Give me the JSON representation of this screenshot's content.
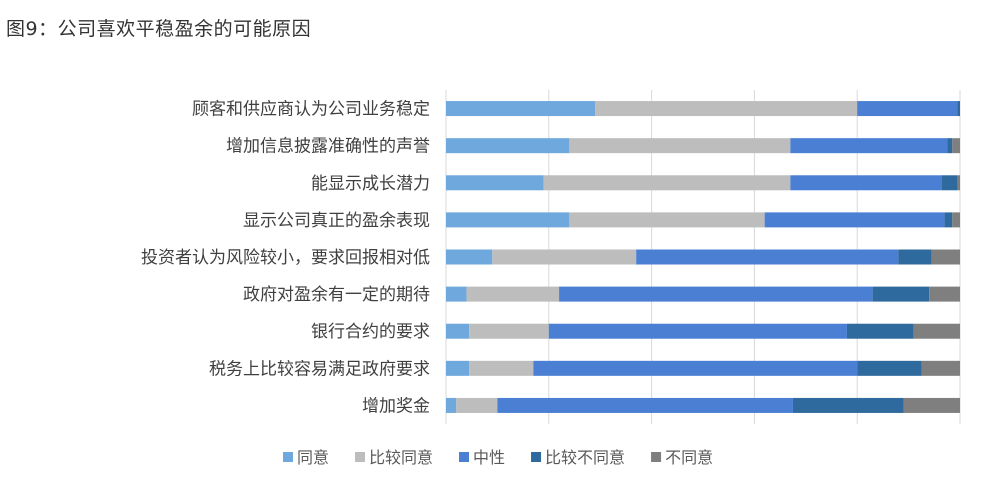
{
  "chart_data": {
    "type": "bar",
    "stacked": "percent",
    "orientation": "horizontal",
    "title": "图9：公司喜欢平稳盈余的可能原因",
    "categories": [
      "顾客和供应商认为公司业务稳定",
      "增加信息披露准确性的声誉",
      "能显示成长潜力",
      "显示公司真正的盈余表现",
      "投资者认为风险较小，要求回报相对低",
      "政府对盈余有一定的期待",
      "银行合约的要求",
      "税务上比较容易满足政府要求",
      "增加奖金"
    ],
    "series": [
      {
        "name": "同意",
        "color": "#6fa8dc",
        "values": [
          29,
          24,
          19,
          24,
          9,
          4,
          4.5,
          4.5,
          2
        ]
      },
      {
        "name": "比较同意",
        "color": "#bdbdbd",
        "values": [
          51,
          43,
          48,
          38,
          28,
          18,
          15.5,
          12.5,
          8
        ]
      },
      {
        "name": "中性",
        "color": "#4a7fd4",
        "values": [
          19.5,
          30.5,
          29.5,
          35,
          51,
          61,
          58,
          63,
          57.5
        ]
      },
      {
        "name": "比较不同意",
        "color": "#2e6a9e",
        "values": [
          0.5,
          1,
          3,
          1.5,
          6.5,
          11,
          13,
          12.5,
          21.5
        ]
      },
      {
        "name": "不同意",
        "color": "#7f7f7f",
        "values": [
          0,
          1.5,
          0.5,
          1.5,
          5.5,
          6,
          9,
          7.5,
          11
        ]
      }
    ],
    "xlim": [
      0,
      100
    ],
    "grid": true,
    "legend": "bottom"
  }
}
